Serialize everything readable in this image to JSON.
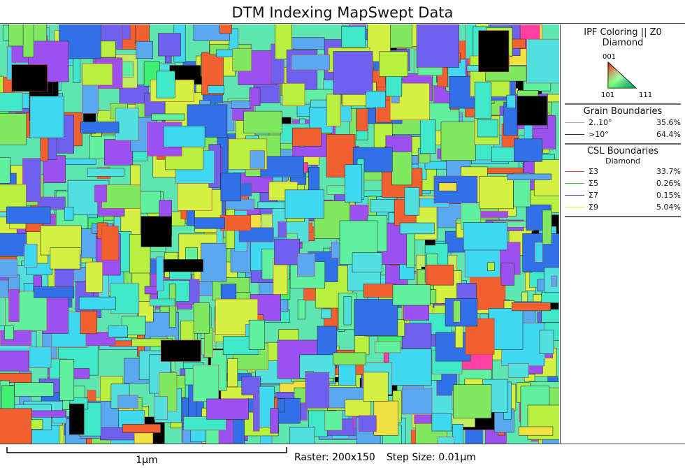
{
  "title": "DTM Indexing MapSwept Data",
  "ipf": {
    "title": "IPF Coloring || Z0",
    "phase": "Diamond",
    "corners": [
      "001",
      "101",
      "111"
    ]
  },
  "grain_boundaries": {
    "title": "Grain Boundaries",
    "rows": [
      {
        "label": "2..10°",
        "value": "35.6%"
      },
      {
        "label": ">10°",
        "value": "64.4%"
      }
    ]
  },
  "csl_boundaries": {
    "title": "CSL Boundaries",
    "phase": "Diamond",
    "rows": [
      {
        "label": "Σ3",
        "value": "33.7%"
      },
      {
        "label": "Σ5",
        "value": "0.26%"
      },
      {
        "label": "Σ7",
        "value": "0.15%"
      },
      {
        "label": "Σ9",
        "value": "5.04%"
      }
    ]
  },
  "footer": {
    "scale": "1µm",
    "raster": "Raster: 200x150",
    "step": "Step Size: 0.01µm"
  }
}
